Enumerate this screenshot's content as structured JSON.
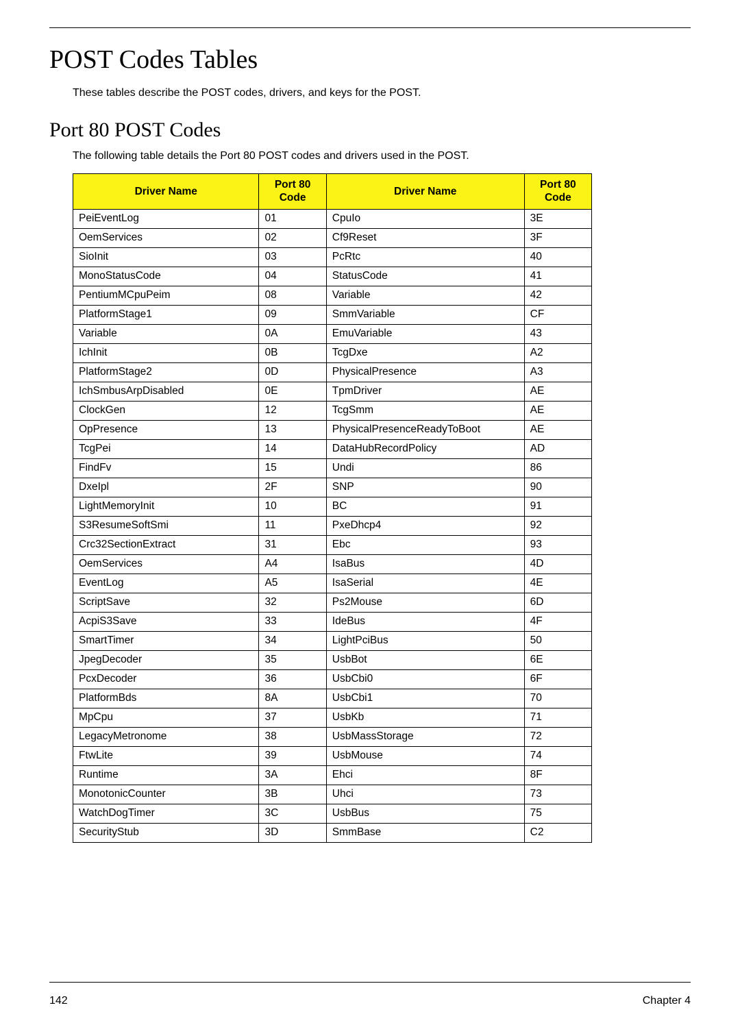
{
  "heading": "POST Codes Tables",
  "intro": "These tables describe the POST codes, drivers, and keys for the POST.",
  "subheading": "Port 80 POST Codes",
  "subintro": "The following table details the Port 80 POST codes and drivers used in the POST.",
  "table": {
    "headers": {
      "driver1": "Driver Name",
      "code1_line1": "Port 80",
      "code1_line2": "Code",
      "driver2": "Driver Name",
      "code2_line1": "Port 80",
      "code2_line2": "Code"
    },
    "header_bg": "#fbf315",
    "col_widths": {
      "driver1": 265,
      "code1": 96,
      "driver2": 282,
      "code2": 96
    },
    "rows": [
      {
        "d1": "PeiEventLog",
        "c1": "01",
        "d2": "CpuIo",
        "c2": "3E"
      },
      {
        "d1": "OemServices",
        "c1": "02",
        "d2": "Cf9Reset",
        "c2": "3F"
      },
      {
        "d1": "SioInit",
        "c1": "03",
        "d2": "PcRtc",
        "c2": "40"
      },
      {
        "d1": "MonoStatusCode",
        "c1": "04",
        "d2": "StatusCode",
        "c2": "41"
      },
      {
        "d1": "PentiumMCpuPeim",
        "c1": "08",
        "d2": "Variable",
        "c2": "42"
      },
      {
        "d1": "PlatformStage1",
        "c1": "09",
        "d2": "SmmVariable",
        "c2": "CF"
      },
      {
        "d1": "Variable",
        "c1": "0A",
        "d2": "EmuVariable",
        "c2": "43"
      },
      {
        "d1": "IchInit",
        "c1": "0B",
        "d2": "TcgDxe",
        "c2": "A2"
      },
      {
        "d1": "PlatformStage2",
        "c1": "0D",
        "d2": "PhysicalPresence",
        "c2": "A3"
      },
      {
        "d1": "IchSmbusArpDisabled",
        "c1": "0E",
        "d2": "TpmDriver",
        "c2": "AE"
      },
      {
        "d1": "ClockGen",
        "c1": "12",
        "d2": "TcgSmm",
        "c2": "AE"
      },
      {
        "d1": "OpPresence",
        "c1": "13",
        "d2": "PhysicalPresenceReadyToBoot",
        "c2": "AE"
      },
      {
        "d1": "TcgPei",
        "c1": "14",
        "d2": "DataHubRecordPolicy",
        "c2": "AD"
      },
      {
        "d1": "FindFv",
        "c1": "15",
        "d2": "Undi",
        "c2": "86"
      },
      {
        "d1": "DxeIpl",
        "c1": "2F",
        "d2": "SNP",
        "c2": "90"
      },
      {
        "d1": "LightMemoryInit",
        "c1": "10",
        "d2": "BC",
        "c2": "91"
      },
      {
        "d1": "S3ResumeSoftSmi",
        "c1": "11",
        "d2": "PxeDhcp4",
        "c2": "92"
      },
      {
        "d1": "Crc32SectionExtract",
        "c1": "31",
        "d2": "Ebc",
        "c2": "93"
      },
      {
        "d1": "OemServices",
        "c1": "A4",
        "d2": "IsaBus",
        "c2": "4D"
      },
      {
        "d1": "EventLog",
        "c1": "A5",
        "d2": "IsaSerial",
        "c2": "4E"
      },
      {
        "d1": "ScriptSave",
        "c1": "32",
        "d2": "Ps2Mouse",
        "c2": "6D"
      },
      {
        "d1": "AcpiS3Save",
        "c1": "33",
        "d2": "IdeBus",
        "c2": "4F"
      },
      {
        "d1": "SmartTimer",
        "c1": "34",
        "d2": "LightPciBus",
        "c2": "50"
      },
      {
        "d1": "JpegDecoder",
        "c1": "35",
        "d2": "UsbBot",
        "c2": "6E"
      },
      {
        "d1": "PcxDecoder",
        "c1": "36",
        "d2": "UsbCbi0",
        "c2": "6F"
      },
      {
        "d1": "PlatformBds",
        "c1": "8A",
        "d2": "UsbCbi1",
        "c2": "70"
      },
      {
        "d1": "MpCpu",
        "c1": "37",
        "d2": "UsbKb",
        "c2": "71"
      },
      {
        "d1": "LegacyMetronome",
        "c1": "38",
        "d2": "UsbMassStorage",
        "c2": "72"
      },
      {
        "d1": "FtwLite",
        "c1": "39",
        "d2": "UsbMouse",
        "c2": "74"
      },
      {
        "d1": "Runtime",
        "c1": "3A",
        "d2": "Ehci",
        "c2": "8F"
      },
      {
        "d1": "MonotonicCounter",
        "c1": "3B",
        "d2": "Uhci",
        "c2": "73"
      },
      {
        "d1": "WatchDogTimer",
        "c1": "3C",
        "d2": "UsbBus",
        "c2": "75"
      },
      {
        "d1": "SecurityStub",
        "c1": "3D",
        "d2": "SmmBase",
        "c2": "C2"
      }
    ]
  },
  "footer": {
    "page": "142",
    "chapter": "Chapter 4"
  }
}
